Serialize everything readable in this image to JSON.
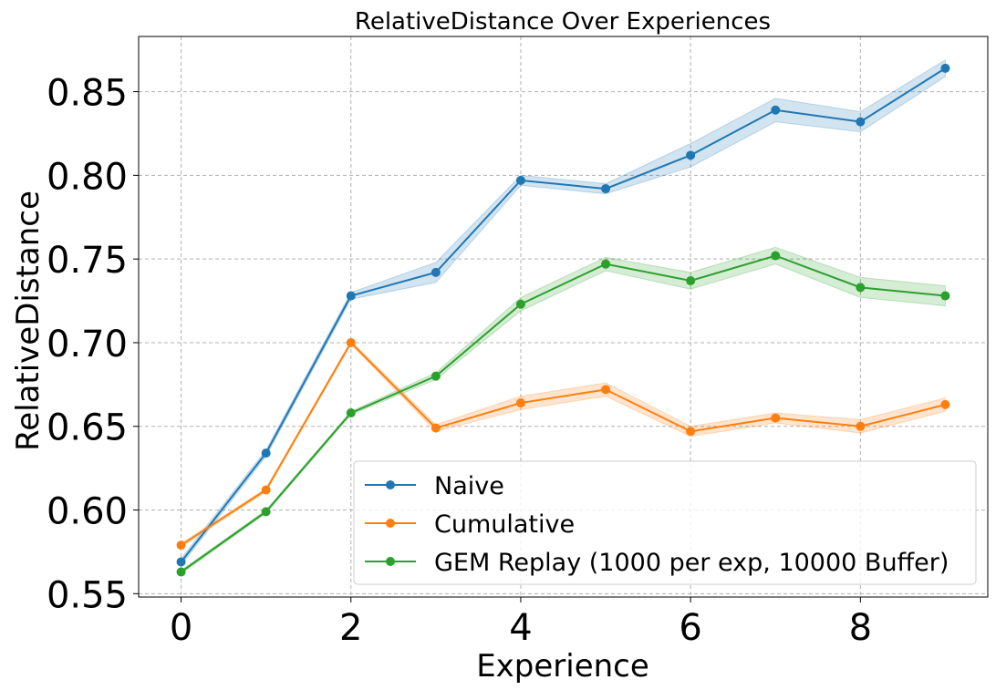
{
  "chart_data": {
    "type": "line",
    "title": "RelativeDistance Over Experiences",
    "xlabel": "Experience",
    "ylabel": "RelativeDistance",
    "xlim": [
      -0.5,
      9.5
    ],
    "ylim": [
      0.548,
      0.883
    ],
    "xticks": [
      0,
      2,
      4,
      6,
      8
    ],
    "yticks": [
      0.55,
      0.6,
      0.65,
      0.7,
      0.75,
      0.8,
      0.85
    ],
    "ytick_labels": [
      "0.55",
      "0.60",
      "0.65",
      "0.70",
      "0.75",
      "0.80",
      "0.85"
    ],
    "grid": true,
    "legend_position": "lower-right",
    "x": [
      0,
      1,
      2,
      3,
      4,
      5,
      6,
      7,
      8,
      9
    ],
    "series": [
      {
        "name": "Naive",
        "color": "#1f77b4",
        "values": [
          0.569,
          0.634,
          0.728,
          0.742,
          0.797,
          0.792,
          0.812,
          0.839,
          0.832,
          0.864
        ],
        "band": [
          0.002,
          0.002,
          0.002,
          0.006,
          0.003,
          0.003,
          0.007,
          0.007,
          0.006,
          0.005
        ]
      },
      {
        "name": "Cumulative",
        "color": "#ff7f0e",
        "values": [
          0.579,
          0.612,
          0.7,
          0.649,
          0.664,
          0.672,
          0.647,
          0.655,
          0.65,
          0.663
        ],
        "band": [
          0.001,
          0.001,
          0.001,
          0.002,
          0.004,
          0.004,
          0.003,
          0.003,
          0.004,
          0.004
        ]
      },
      {
        "name": "GEM Replay (1000 per exp, 10000 Buffer)",
        "color": "#2ca02c",
        "values": [
          0.563,
          0.599,
          0.658,
          0.68,
          0.723,
          0.747,
          0.737,
          0.752,
          0.733,
          0.728
        ],
        "band": [
          0.001,
          0.001,
          0.001,
          0.002,
          0.004,
          0.004,
          0.005,
          0.005,
          0.006,
          0.006
        ]
      }
    ]
  }
}
